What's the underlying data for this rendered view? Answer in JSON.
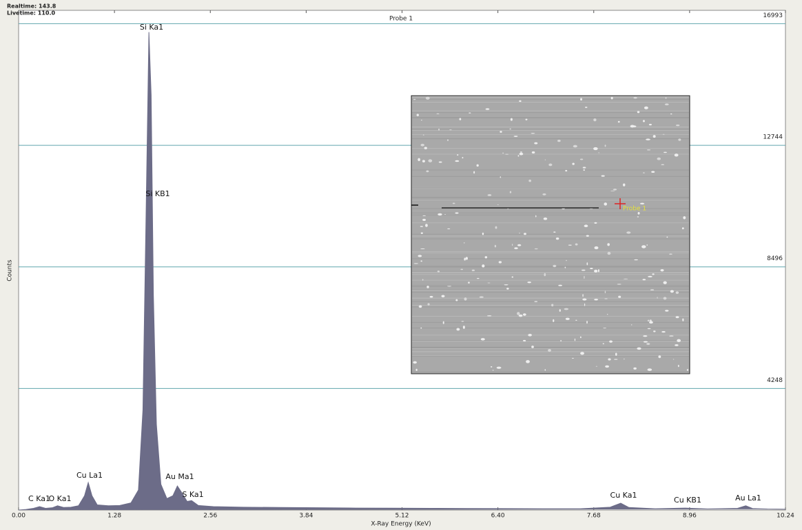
{
  "realtime": "Realtime: 143.8",
  "livetime": "Livetime: 110.0",
  "chart_data": {
    "type": "spectrum",
    "title": "Probe 1",
    "x_label": "X-Ray Energy (KeV)",
    "y_label": "Counts",
    "color": "#6c6c88",
    "grid_color": "#5fa5ad",
    "grid": true,
    "xlim": [
      0,
      10.24
    ],
    "xticks": [
      {
        "value": 0,
        "label": "0.00"
      },
      1.28,
      2.56,
      3.84,
      5.12,
      {
        "value": 6.4,
        "label": "6.40"
      },
      7.68,
      8.96,
      10.24
    ],
    "ylim": [
      0,
      17460
    ],
    "yticks": [
      4248,
      8496,
      12744,
      16993
    ],
    "x": [
      0,
      0.1,
      0.2,
      0.28,
      0.36,
      0.45,
      0.52,
      0.6,
      0.7,
      0.8,
      0.88,
      0.93,
      0.98,
      1.05,
      1.2,
      1.35,
      1.5,
      1.6,
      1.66,
      1.7,
      1.74,
      1.77,
      1.8,
      1.84,
      1.9,
      1.98,
      2.06,
      2.12,
      2.18,
      2.25,
      2.31,
      2.4,
      2.6,
      3.0,
      3.5,
      4.0,
      4.5,
      5.0,
      5.5,
      6.0,
      6.5,
      7.0,
      7.5,
      7.9,
      8.04,
      8.15,
      8.5,
      8.9,
      9.2,
      9.6,
      9.71,
      9.8,
      10.0,
      10.24
    ],
    "values": [
      0,
      20,
      60,
      120,
      60,
      80,
      150,
      90,
      100,
      150,
      500,
      960,
      500,
      180,
      150,
      160,
      250,
      700,
      3500,
      10000,
      16700,
      14500,
      7500,
      3000,
      900,
      400,
      500,
      840,
      600,
      300,
      330,
      160,
      120,
      100,
      90,
      80,
      70,
      65,
      60,
      55,
      50,
      45,
      45,
      100,
      240,
      90,
      45,
      70,
      40,
      60,
      150,
      55,
      35,
      30
    ],
    "annotations": [
      "C Ka1",
      "O Ka1",
      "Cu La1",
      "Si Ka1",
      "Si KB1",
      "Au Ma1",
      "S Ka1",
      "Cu Ka1",
      "Cu KB1",
      "Au La1"
    ],
    "inset_probe_label": "Probe 1"
  }
}
